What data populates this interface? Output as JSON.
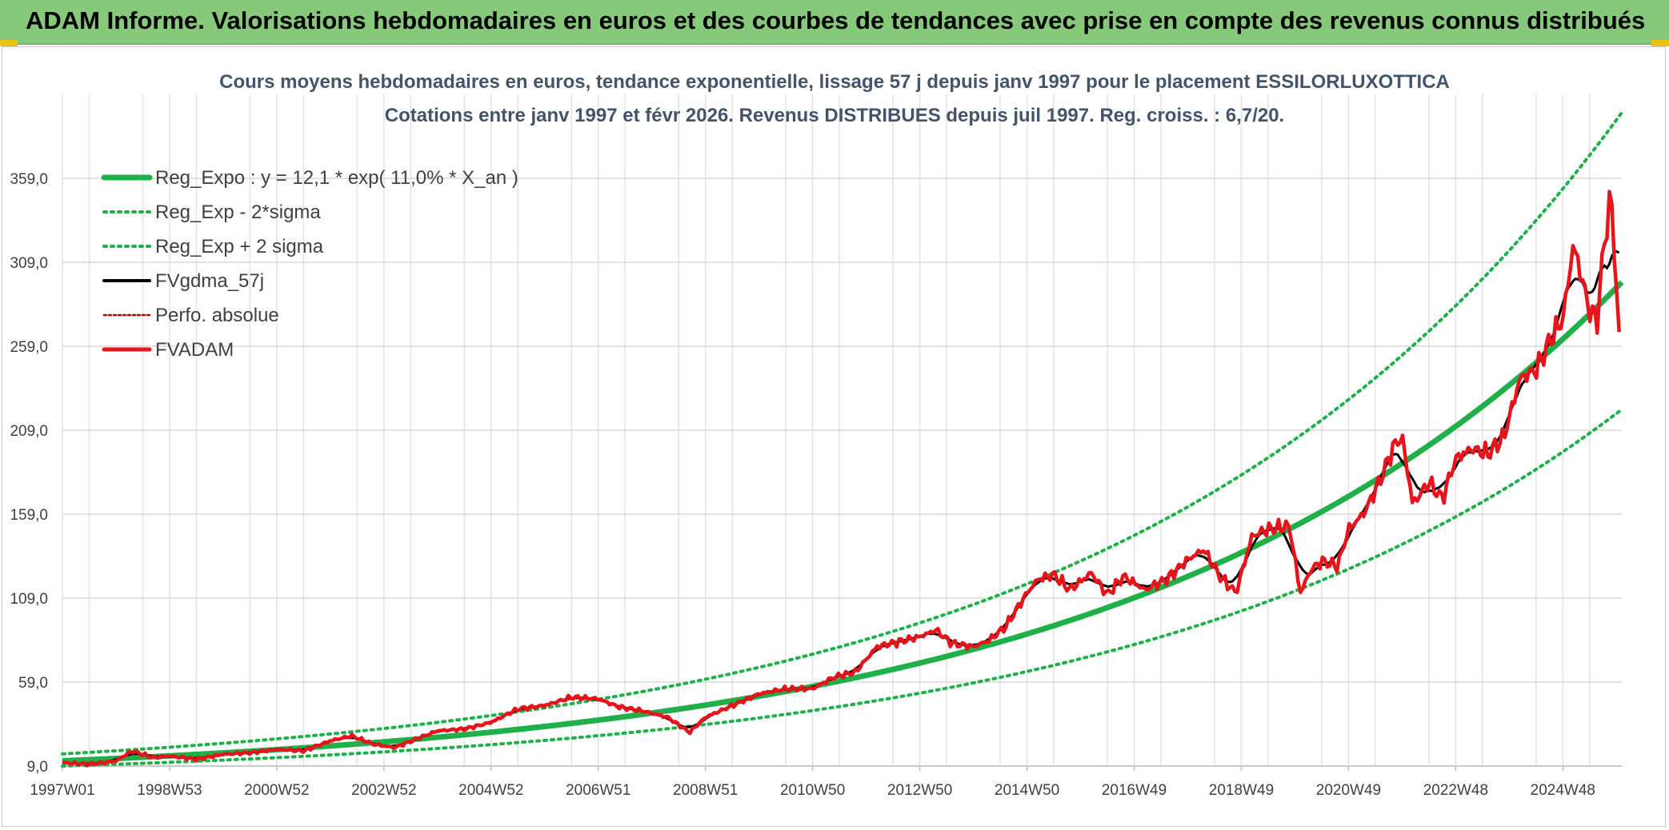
{
  "header": {
    "banner_title": "ADAM Informe. Valorisations hebdomadaires en euros et des courbes de tendances avec prise en compte des revenus connus distribués"
  },
  "colors": {
    "banner": "#86c97a",
    "trend": "#1fb04a",
    "smoothed": "#000000",
    "price": "#e8141b",
    "grid": "#d9d9d9"
  },
  "chart_data": {
    "type": "line",
    "title": "Cours moyens hebdomadaires en euros, tendance exponentielle, lissage 57 j depuis janv 1997 pour le placement ESSILORLUXOTTICA",
    "subtitle": "Cotations entre janv 1997 et févr 2026. Revenus DISTRIBUES depuis juil 1997. Reg. croiss. : 6,7/20.",
    "xlabel": "",
    "ylabel": "",
    "xlim": [
      1997.0,
      2026.1
    ],
    "ylim": [
      9,
      409
    ],
    "y_ticks": [
      9,
      59,
      109,
      159,
      209,
      259,
      309,
      359
    ],
    "y_tick_labels": [
      "9,0",
      "59,0",
      "109,0",
      "159,0",
      "209,0",
      "259,0",
      "309,0",
      "359,0"
    ],
    "x_ticks": [
      1997.0,
      1999.0,
      2001.0,
      2003.0,
      2005.0,
      2007.0,
      2009.0,
      2011.0,
      2013.0,
      2015.0,
      2017.0,
      2019.0,
      2021.0,
      2023.0,
      2025.0
    ],
    "x_tick_labels": [
      "1997W01",
      "1998W53",
      "2000W52",
      "2002W52",
      "2004W52",
      "2006W51",
      "2008W51",
      "2010W50",
      "2012W50",
      "2014W50",
      "2016W49",
      "2018W49",
      "2020W49",
      "2022W48",
      "2024W48"
    ],
    "grid": true,
    "legend_position": "top-left",
    "regression": {
      "a": 12.1,
      "rate_per_year": 0.11,
      "start_year": 1997.0,
      "sigma_factor_low": 0.745,
      "sigma_factor_high": 1.34
    },
    "series": [
      {
        "name": "Reg_Expo : y = 12,1 * exp( 11,0% *  X_an )",
        "style": "trend",
        "color": "#1fb04a"
      },
      {
        "name": "Reg_Exp - 2*sigma",
        "style": "band",
        "color": "#1fb04a"
      },
      {
        "name": "Reg_Exp + 2 sigma",
        "style": "band",
        "color": "#1fb04a"
      },
      {
        "name": "FVgdma_57j",
        "style": "smoothed",
        "color": "#000000"
      },
      {
        "name": "Perfo. absolue",
        "style": "dotted",
        "color": "#c00000"
      },
      {
        "name": "FVADAM",
        "style": "price",
        "color": "#e8141b",
        "x": [
          1997.0,
          1997.5,
          1998.0,
          1998.3,
          1998.7,
          1999.0,
          1999.5,
          2000.0,
          2000.5,
          2001.0,
          2001.5,
          2002.0,
          2002.4,
          2002.8,
          2003.2,
          2003.6,
          2004.0,
          2004.5,
          2005.0,
          2005.5,
          2006.0,
          2006.5,
          2007.0,
          2007.4,
          2007.8,
          2008.3,
          2008.7,
          2009.0,
          2009.5,
          2010.0,
          2010.5,
          2011.0,
          2011.4,
          2011.8,
          2012.2,
          2012.6,
          2013.0,
          2013.3,
          2013.6,
          2014.0,
          2014.3,
          2014.6,
          2015.0,
          2015.2,
          2015.5,
          2015.8,
          2016.2,
          2016.5,
          2016.8,
          2017.2,
          2017.6,
          2018.0,
          2018.3,
          2018.6,
          2018.9,
          2019.2,
          2019.5,
          2019.9,
          2020.1,
          2020.3,
          2020.5,
          2020.8,
          2021.0,
          2021.3,
          2021.6,
          2021.85,
          2022.0,
          2022.2,
          2022.5,
          2022.75,
          2023.0,
          2023.3,
          2023.6,
          2023.9,
          2024.2,
          2024.5,
          2024.8,
          2025.0,
          2025.2,
          2025.5,
          2025.65,
          2025.75,
          2025.9,
          2026.05
        ],
        "values": [
          11,
          10,
          12,
          18,
          14,
          15,
          13,
          16,
          17,
          19,
          18,
          24,
          27,
          22,
          20,
          25,
          30,
          31,
          35,
          43,
          45,
          50,
          49,
          44,
          42,
          38,
          29,
          38,
          45,
          52,
          55,
          55,
          62,
          65,
          80,
          83,
          86,
          90,
          82,
          80,
          84,
          92,
          112,
          120,
          123,
          114,
          124,
          111,
          122,
          114,
          120,
          132,
          138,
          122,
          112,
          146,
          150,
          152,
          112,
          126,
          131,
          128,
          150,
          160,
          180,
          200,
          205,
          165,
          178,
          168,
          192,
          198,
          195,
          205,
          240,
          245,
          265,
          275,
          320,
          280,
          275,
          315,
          350,
          265
        ]
      }
    ]
  }
}
